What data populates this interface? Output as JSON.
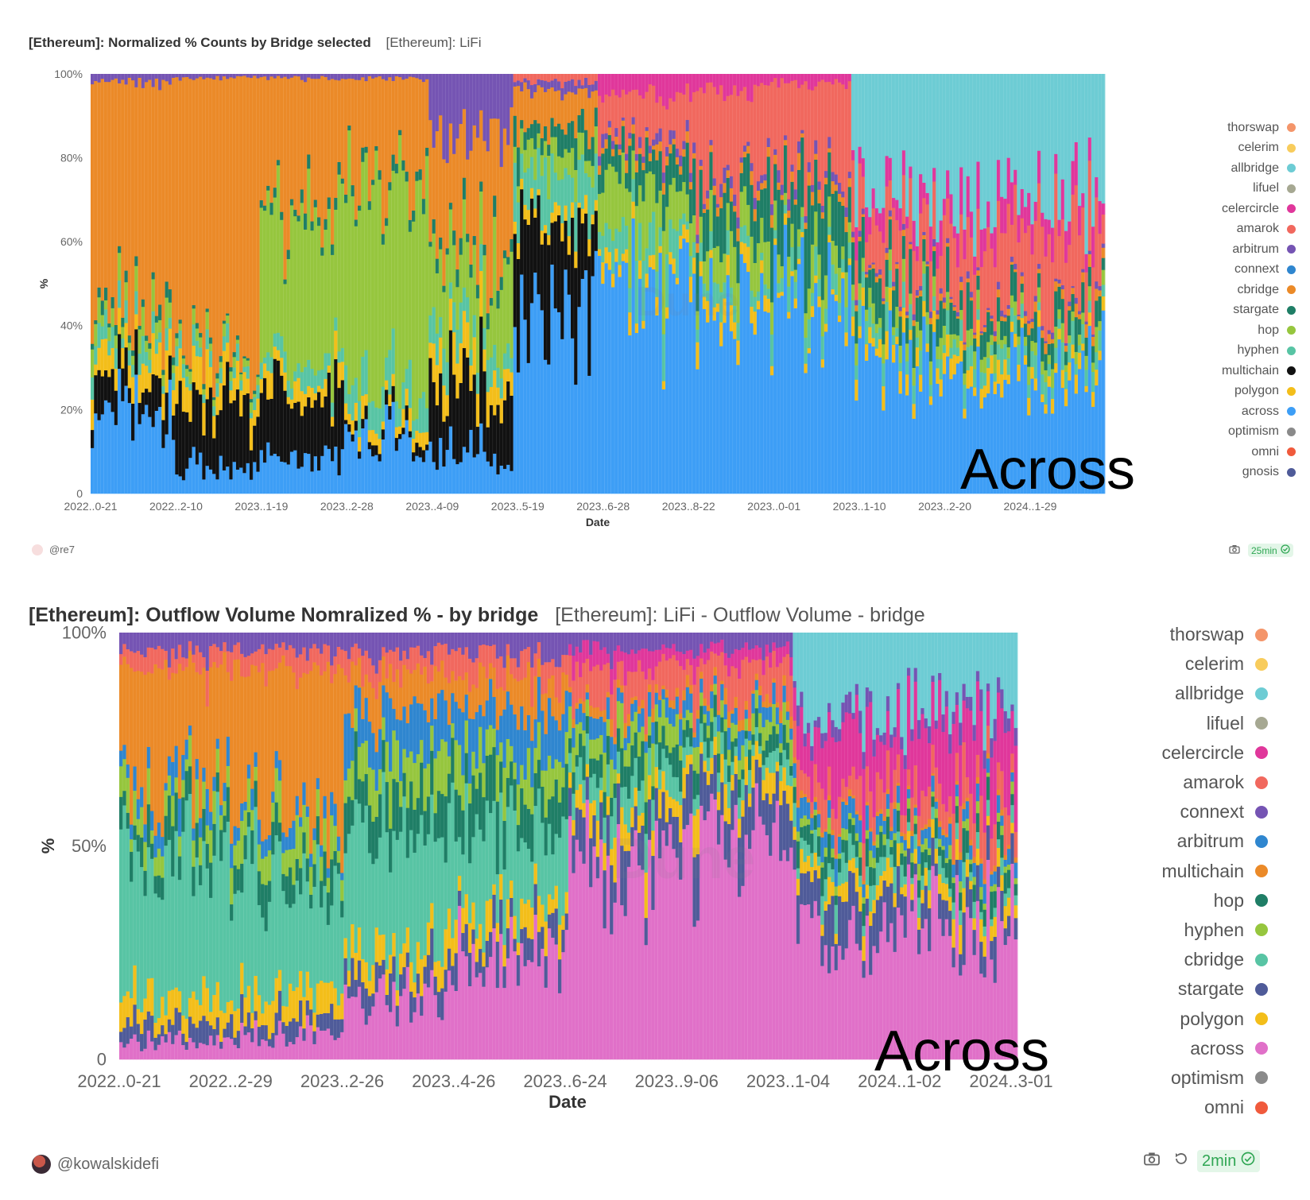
{
  "panels": [
    {
      "title": "[Ethereum]: Normalized % Counts by Bridge selected",
      "subtitle": "[Ethereum]: LiFi",
      "author": "@re7",
      "refresh_badge": "25min",
      "annotation": "Across",
      "watermark": "Dune",
      "legend": [
        {
          "name": "thorswap",
          "color": "#f4956a"
        },
        {
          "name": "celerim",
          "color": "#f8cc5c"
        },
        {
          "name": "allbridge",
          "color": "#6dccd4"
        },
        {
          "name": "lifuel",
          "color": "#a6a892"
        },
        {
          "name": "celercircle",
          "color": "#e0379b"
        },
        {
          "name": "amarok",
          "color": "#f1685e"
        },
        {
          "name": "arbitrum",
          "color": "#7554b3"
        },
        {
          "name": "connext",
          "color": "#2f86cf"
        },
        {
          "name": "cbridge",
          "color": "#eb8a28"
        },
        {
          "name": "stargate",
          "color": "#1f7e66"
        },
        {
          "name": "hop",
          "color": "#96c63e"
        },
        {
          "name": "hyphen",
          "color": "#58c4a4"
        },
        {
          "name": "multichain",
          "color": "#111111"
        },
        {
          "name": "polygon",
          "color": "#f3be1a"
        },
        {
          "name": "across",
          "color": "#3d9ef6"
        },
        {
          "name": "optimism",
          "color": "#8a8a8a"
        },
        {
          "name": "omni",
          "color": "#f05a3c"
        },
        {
          "name": "gnosis",
          "color": "#4f5b99"
        }
      ]
    },
    {
      "title": "[Ethereum]: Outflow Volume Nomralized % - by bridge",
      "subtitle": "[Ethereum]: LiFi - Outflow Volume - bridge",
      "author": "@kowalskidefi",
      "refresh_badge": "2min",
      "annotation": "Across",
      "watermark": "Dune",
      "legend": [
        {
          "name": "thorswap",
          "color": "#f4956a"
        },
        {
          "name": "celerim",
          "color": "#f8cc5c"
        },
        {
          "name": "allbridge",
          "color": "#6dccd4"
        },
        {
          "name": "lifuel",
          "color": "#a6a892"
        },
        {
          "name": "celercircle",
          "color": "#e0379b"
        },
        {
          "name": "amarok",
          "color": "#f1685e"
        },
        {
          "name": "connext",
          "color": "#7554b3"
        },
        {
          "name": "arbitrum",
          "color": "#2f86cf"
        },
        {
          "name": "multichain",
          "color": "#eb8a28"
        },
        {
          "name": "hop",
          "color": "#1f7e66"
        },
        {
          "name": "hyphen",
          "color": "#96c63e"
        },
        {
          "name": "cbridge",
          "color": "#58c4a4"
        },
        {
          "name": "stargate",
          "color": "#4f5b99"
        },
        {
          "name": "polygon",
          "color": "#f3be1a"
        },
        {
          "name": "across",
          "color": "#e070c8"
        },
        {
          "name": "optimism",
          "color": "#8a8a8a"
        },
        {
          "name": "omni",
          "color": "#f05a3c"
        }
      ]
    }
  ],
  "chart_data": [
    {
      "type": "bar",
      "stacked": true,
      "normalized": true,
      "xlabel": "Date",
      "ylabel": "%",
      "ylim": [
        0,
        100
      ],
      "yticks": [
        "0",
        "20%",
        "40%",
        "60%",
        "80%",
        "100%"
      ],
      "xticks": [
        "2022..0-21",
        "2022..2-10",
        "2023..1-19",
        "2023..2-28",
        "2023..4-09",
        "2023..5-19",
        "2023..6-28",
        "2023..8-22",
        "2023..0-01",
        "2023..1-10",
        "2023..2-20",
        "2024..1-29"
      ],
      "series_order": [
        "across",
        "multichain",
        "polygon",
        "hyphen",
        "hop",
        "stargate",
        "cbridge",
        "arbitrum",
        "amarok",
        "celercircle",
        "allbridge"
      ],
      "phases": [
        {
          "period": "2022..0-21 – 2022..2-10",
          "across": 20,
          "multichain": 8,
          "polygon": 6,
          "hyphen": 4,
          "hop": 4,
          "stargate": 2,
          "cbridge": 54,
          "arbitrum": 2
        },
        {
          "period": "2022..2-10 – 2023..1-19",
          "across": 6,
          "multichain": 18,
          "polygon": 6,
          "hyphen": 3,
          "hop": 2,
          "stargate": 1,
          "cbridge": 63,
          "arbitrum": 1
        },
        {
          "period": "2023..1-19 – 2023..2-28",
          "across": 8,
          "multichain": 18,
          "polygon": 4,
          "hyphen": 4,
          "hop": 32,
          "stargate": 2,
          "cbridge": 31,
          "arbitrum": 1
        },
        {
          "period": "2023..2-28 – 2023..4-09",
          "across": 12,
          "multichain": 2,
          "polygon": 3,
          "hyphen": 6,
          "hop": 50,
          "stargate": 2,
          "cbridge": 24,
          "arbitrum": 1
        },
        {
          "period": "2023..4-09 – 2023..5-19",
          "across": 10,
          "multichain": 16,
          "polygon": 6,
          "hyphen": 6,
          "hop": 16,
          "stargate": 3,
          "cbridge": 29,
          "arbitrum": 14
        },
        {
          "period": "2023..5-19 – 2023..6-28",
          "across": 44,
          "multichain": 20,
          "polygon": 3,
          "hyphen": 10,
          "hop": 6,
          "stargate": 5,
          "cbridge": 8,
          "arbitrum": 2,
          "amarok": 2
        },
        {
          "period": "2023..6-28 – 2023..8-22",
          "across": 48,
          "multichain": 0,
          "polygon": 3,
          "hyphen": 8,
          "hop": 14,
          "stargate": 6,
          "cbridge": 2,
          "arbitrum": 2,
          "amarok": 12,
          "celercircle": 5
        },
        {
          "period": "2023..8-22 – 2023..0-01",
          "across": 46,
          "multichain": 0,
          "polygon": 4,
          "hyphen": 4,
          "hop": 8,
          "stargate": 10,
          "cbridge": 2,
          "arbitrum": 2,
          "amarok": 20,
          "celercircle": 4
        },
        {
          "period": "2023..0-01 – 2023..1-10",
          "across": 48,
          "multichain": 0,
          "polygon": 2,
          "hyphen": 4,
          "hop": 6,
          "stargate": 14,
          "cbridge": 2,
          "arbitrum": 2,
          "amarok": 20,
          "celercircle": 2
        },
        {
          "period": "2023..1-10 – 2023..2-20",
          "across": 30,
          "multichain": 0,
          "polygon": 4,
          "hyphen": 4,
          "hop": 4,
          "stargate": 8,
          "cbridge": 1,
          "arbitrum": 1,
          "amarok": 14,
          "celercircle": 6,
          "allbridge": 28
        },
        {
          "period": "2023..2-20 – 2024..1-29",
          "across": 28,
          "multichain": 0,
          "polygon": 4,
          "hyphen": 4,
          "hop": 3,
          "stargate": 6,
          "cbridge": 1,
          "arbitrum": 1,
          "amarok": 14,
          "celercircle": 7,
          "allbridge": 32
        },
        {
          "period": "2024..1-29 – end",
          "across": 32,
          "multichain": 0,
          "polygon": 3,
          "hyphen": 4,
          "hop": 3,
          "stargate": 5,
          "cbridge": 2,
          "arbitrum": 1,
          "amarok": 16,
          "celercircle": 6,
          "allbridge": 28
        }
      ]
    },
    {
      "type": "bar",
      "stacked": true,
      "normalized": true,
      "xlabel": "Date",
      "ylabel": "%",
      "ylim": [
        0,
        100
      ],
      "yticks": [
        "0",
        "50%",
        "100%"
      ],
      "xticks": [
        "2022..0-21",
        "2022..2-29",
        "2023..2-26",
        "2023..4-26",
        "2023..6-24",
        "2023..9-06",
        "2023..1-04",
        "2024..1-02",
        "2024..3-01"
      ],
      "series_order": [
        "across",
        "stargate",
        "polygon",
        "cbridge",
        "hop",
        "hyphen",
        "arbitrum",
        "multichain",
        "amarok",
        "celercircle",
        "connext",
        "allbridge"
      ],
      "phases": [
        {
          "period": "2022..0-21 – 2022..2-29",
          "across": 4,
          "stargate": 4,
          "polygon": 6,
          "cbridge": 34,
          "hop": 6,
          "hyphen": 6,
          "arbitrum": 4,
          "multichain": 28,
          "amarok": 4,
          "connext": 4
        },
        {
          "period": "2022..2-29 – 2023..2-26",
          "across": 6,
          "stargate": 4,
          "polygon": 6,
          "cbridge": 26,
          "hop": 6,
          "hyphen": 6,
          "arbitrum": 4,
          "multichain": 34,
          "amarok": 4,
          "connext": 4
        },
        {
          "period": "2023..2-26 – 2023..4-26",
          "across": 14,
          "stargate": 6,
          "polygon": 6,
          "cbridge": 28,
          "hop": 10,
          "hyphen": 8,
          "arbitrum": 10,
          "multichain": 8,
          "amarok": 5,
          "connext": 5
        },
        {
          "period": "2023..4-26 – 2023..6-24",
          "across": 24,
          "stargate": 6,
          "polygon": 6,
          "cbridge": 18,
          "hop": 10,
          "hyphen": 8,
          "arbitrum": 10,
          "multichain": 8,
          "amarok": 5,
          "connext": 5
        },
        {
          "period": "2023..6-24 – 2023..9-06",
          "across": 46,
          "stargate": 8,
          "polygon": 6,
          "cbridge": 6,
          "hop": 6,
          "hyphen": 6,
          "arbitrum": 4,
          "multichain": 2,
          "amarok": 8,
          "celercircle": 4,
          "connext": 4
        },
        {
          "period": "2023..9-06 – 2023..1-04",
          "across": 50,
          "stargate": 10,
          "polygon": 6,
          "cbridge": 4,
          "hop": 4,
          "hyphen": 4,
          "arbitrum": 4,
          "multichain": 2,
          "amarok": 8,
          "celercircle": 4,
          "connext": 4
        },
        {
          "period": "2023..1-04 – 2024..1-02",
          "across": 30,
          "stargate": 8,
          "polygon": 4,
          "cbridge": 4,
          "hop": 4,
          "hyphen": 2,
          "arbitrum": 4,
          "multichain": 1,
          "amarok": 6,
          "celercircle": 12,
          "connext": 3,
          "allbridge": 22
        },
        {
          "period": "2024..1-02 – 2024..3-01",
          "across": 34,
          "stargate": 6,
          "polygon": 4,
          "cbridge": 3,
          "hop": 4,
          "hyphen": 2,
          "arbitrum": 3,
          "multichain": 1,
          "amarok": 8,
          "celercircle": 15,
          "connext": 3,
          "allbridge": 17
        }
      ]
    }
  ]
}
